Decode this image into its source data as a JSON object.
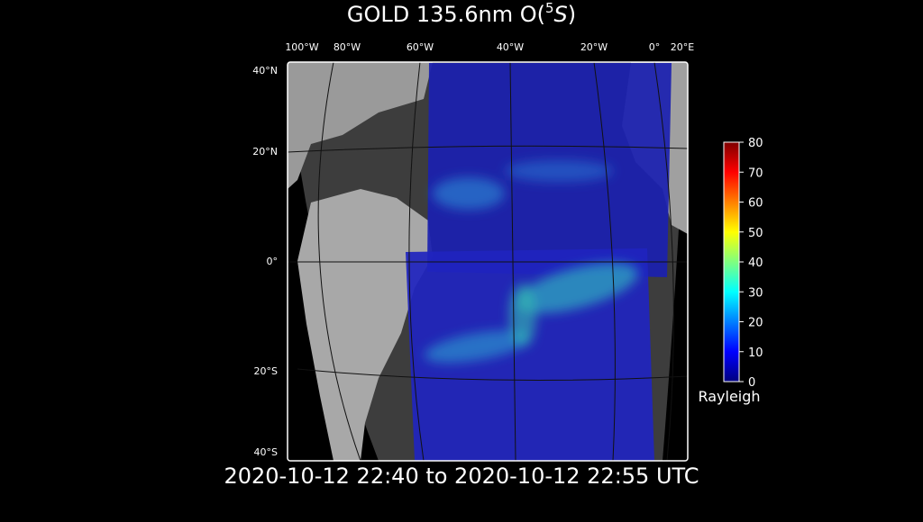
{
  "title": {
    "prefix": "GOLD 135.6nm O(",
    "superscript": "5",
    "symbol": "S",
    "suffix": ")"
  },
  "subtitle": "2020-10-12 22:40 to 2020-10-12 22:55 UTC",
  "map": {
    "lon_labels": [
      "100°W",
      "80°W",
      "60°W",
      "40°W",
      "20°W",
      "0°",
      "20°E"
    ],
    "lat_labels": [
      "40°N",
      "20°N",
      "0°",
      "20°S",
      "40°S"
    ]
  },
  "colorbar": {
    "label": "Rayleigh",
    "lim": [
      0,
      80
    ],
    "ticks": [
      0,
      10,
      20,
      30,
      40,
      50,
      60,
      70,
      80
    ]
  }
}
